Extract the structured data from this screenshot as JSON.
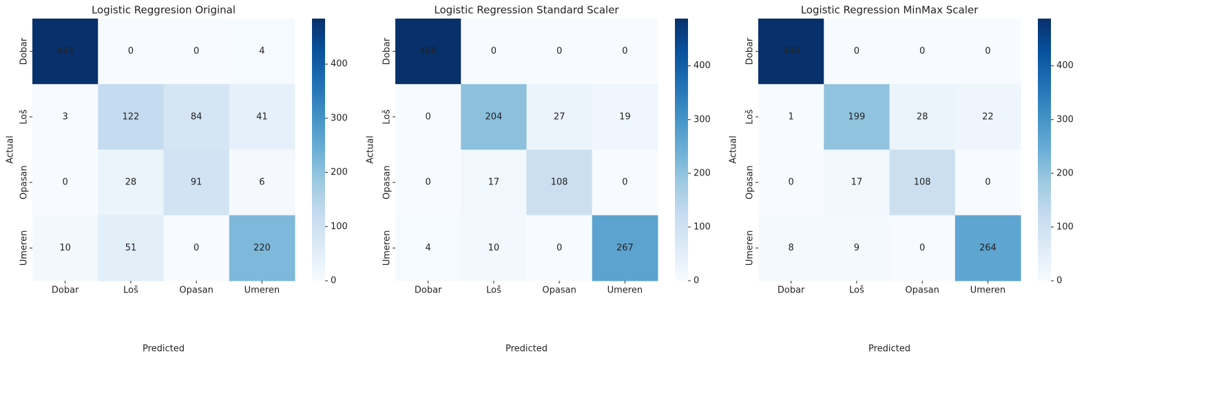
{
  "chart_data": [
    {
      "type": "heatmap",
      "title": "Logistic Reggresion Original",
      "xlabel": "Predicted",
      "ylabel": "Actual",
      "x_categories": [
        "Dobar",
        "Loš",
        "Opasan",
        "Umeren"
      ],
      "y_categories": [
        "Dobar",
        "Loš",
        "Opasan",
        "Umeren"
      ],
      "values": [
        [
          484,
          0,
          0,
          4
        ],
        [
          3,
          122,
          84,
          41
        ],
        [
          0,
          28,
          91,
          6
        ],
        [
          10,
          51,
          0,
          220
        ]
      ],
      "colormap": "Blues",
      "color_range": [
        0,
        484
      ],
      "colorbar_ticks": [
        0,
        100,
        200,
        300,
        400
      ]
    },
    {
      "type": "heatmap",
      "title": "Logistic Regression Standard Scaler",
      "xlabel": "Predicted",
      "ylabel": "Actual",
      "x_categories": [
        "Dobar",
        "Loš",
        "Opasan",
        "Umeren"
      ],
      "y_categories": [
        "Dobar",
        "Loš",
        "Opasan",
        "Umeren"
      ],
      "values": [
        [
          488,
          0,
          0,
          0
        ],
        [
          0,
          204,
          27,
          19
        ],
        [
          0,
          17,
          108,
          0
        ],
        [
          4,
          10,
          0,
          267
        ]
      ],
      "colormap": "Blues",
      "color_range": [
        0,
        488
      ],
      "colorbar_ticks": [
        0,
        100,
        200,
        300,
        400
      ]
    },
    {
      "type": "heatmap",
      "title": "Logistic Regression MinMax Scaler",
      "xlabel": "Predicted",
      "ylabel": "Actual",
      "x_categories": [
        "Dobar",
        "Loš",
        "Opasan",
        "Umeren"
      ],
      "y_categories": [
        "Dobar",
        "Loš",
        "Opasan",
        "Umeren"
      ],
      "values": [
        [
          488,
          0,
          0,
          0
        ],
        [
          1,
          199,
          28,
          22
        ],
        [
          0,
          17,
          108,
          0
        ],
        [
          8,
          9,
          0,
          264
        ]
      ],
      "colormap": "Blues",
      "color_range": [
        0,
        488
      ],
      "colorbar_ticks": [
        0,
        100,
        200,
        300,
        400
      ]
    }
  ]
}
